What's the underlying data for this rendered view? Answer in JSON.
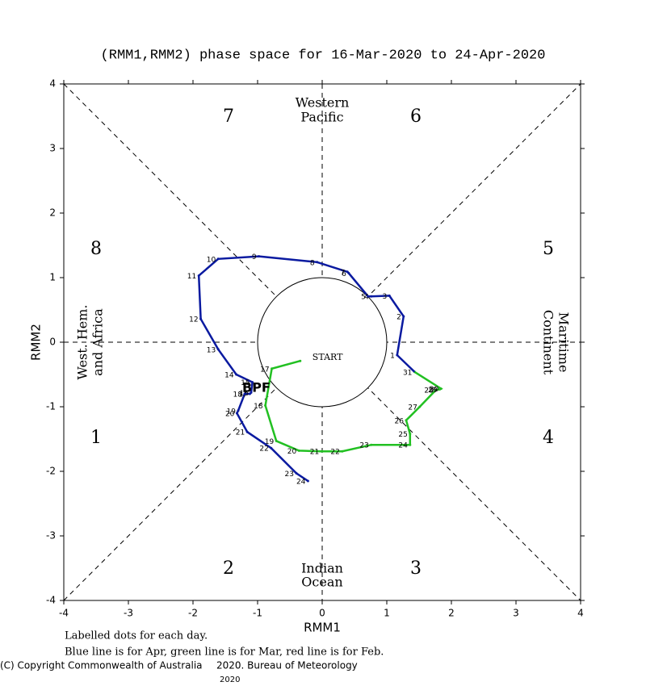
{
  "chart_data": {
    "type": "rmm-phase",
    "title": "(RMM1,RMM2) phase space for 16-Mar-2020 to 24-Apr-2020",
    "x_label": "RMM1",
    "y_label": "RMM2",
    "xlim": [
      -4,
      4
    ],
    "ylim": [
      -4,
      4
    ],
    "xticks": [
      -4,
      -3,
      -2,
      -1,
      0,
      1,
      2,
      3,
      4
    ],
    "yticks": [
      -4,
      -3,
      -2,
      -1,
      0,
      1,
      2,
      3,
      4
    ],
    "phase_labels": [
      "1",
      "2",
      "3",
      "4",
      "5",
      "6",
      "7",
      "8"
    ],
    "regions": {
      "top": [
        "Western",
        "Pacific"
      ],
      "bottom": [
        "Indian",
        "Ocean"
      ],
      "left": [
        "West. Hem.",
        "and Africa"
      ],
      "right": [
        "Maritime",
        "Continent"
      ]
    },
    "annotation": "BPF",
    "series": [
      {
        "color": "#22c022",
        "labels": [
          "START",
          "17",
          "18",
          "19",
          "20",
          "21",
          "22",
          "23",
          "24",
          "25",
          "26",
          "27",
          "28",
          "29",
          "30",
          "31"
        ],
        "x": [
          -0.34,
          -0.78,
          -0.88,
          -0.71,
          -0.36,
          -0.01,
          0.31,
          0.76,
          1.36,
          1.36,
          1.3,
          1.51,
          1.76,
          1.82,
          1.84,
          1.43
        ],
        "values": [
          -0.29,
          -0.41,
          -0.98,
          -1.53,
          -1.68,
          -1.69,
          -1.69,
          -1.59,
          -1.59,
          -1.42,
          -1.21,
          -1.0,
          -0.74,
          -0.73,
          -0.72,
          -0.46
        ]
      },
      {
        "color": "#0a1aa0",
        "labels": [
          "1",
          "2",
          "3",
          "4",
          "5",
          "6",
          "7",
          "8",
          "9",
          "10",
          "11",
          "12",
          "13",
          "14",
          "15",
          "16",
          "17",
          "18",
          "19",
          "20",
          "21",
          "22",
          "23",
          "24"
        ],
        "x": [
          1.16,
          1.26,
          1.04,
          0.76,
          0.71,
          0.41,
          0.39,
          -0.08,
          -0.98,
          -1.61,
          -1.91,
          -1.88,
          -1.61,
          -1.33,
          -1.08,
          -1.1,
          -1.12,
          -1.2,
          -1.3,
          -1.32,
          -1.16,
          -0.79,
          -0.4,
          -0.22
        ],
        "values": [
          -0.2,
          0.4,
          0.72,
          0.71,
          0.71,
          1.07,
          1.09,
          1.24,
          1.33,
          1.29,
          1.03,
          0.36,
          -0.11,
          -0.5,
          -0.62,
          -0.78,
          -0.8,
          -0.8,
          -1.06,
          -1.1,
          -1.39,
          -1.64,
          -2.03,
          -2.15
        ]
      }
    ],
    "notes": [
      "Labelled dots for each day.",
      "Blue line is for Apr, green line is for Mar, red line is for Feb."
    ],
    "footer": [
      "(C) Copyright Commonwealth of Australia",
      "2020. Bureau of Meteorology",
      "2020"
    ]
  }
}
